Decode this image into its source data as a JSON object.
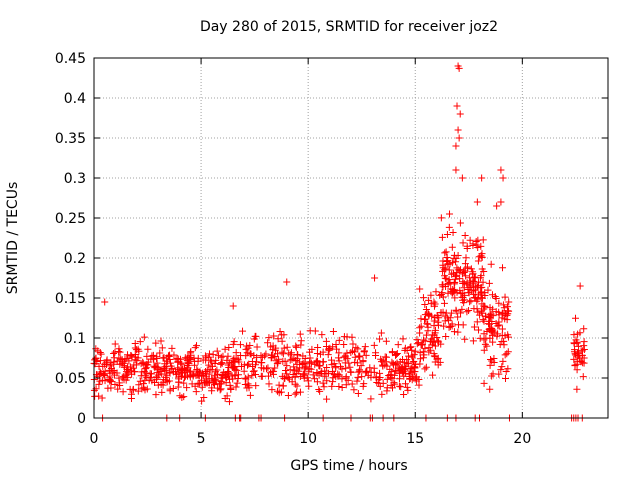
{
  "chart_data": {
    "type": "scatter",
    "title": "Day 280 of 2015, SRMTID for receiver joz2",
    "xlabel": "GPS time / hours",
    "ylabel": "SRMTID / TECUs",
    "xlim": [
      0,
      24
    ],
    "ylim": [
      0,
      0.45
    ],
    "xticks": [
      0,
      5,
      10,
      15,
      20
    ],
    "xtick_labels": [
      "0",
      "5",
      "10",
      "15",
      "20"
    ],
    "yticks": [
      0,
      0.05,
      0.1,
      0.15,
      0.2,
      0.25,
      0.3,
      0.35,
      0.4,
      0.45
    ],
    "ytick_labels": [
      "0",
      "0.05",
      "0.1",
      "0.15",
      "0.2",
      "0.25",
      "0.3",
      "0.35",
      "0.4",
      "0.45"
    ],
    "grid": true,
    "marker": "+",
    "color": "#ff0000",
    "segments": [
      {
        "x_start": 0.0,
        "x_end": 6.7,
        "y_mean": 0.06,
        "y_spread": 0.022,
        "n": 420
      },
      {
        "x_start": 6.7,
        "x_end": 15.2,
        "y_mean": 0.065,
        "y_spread": 0.025,
        "n": 420
      },
      {
        "x_start": 15.2,
        "x_end": 16.2,
        "y_mean": 0.11,
        "y_spread": 0.04,
        "n": 80
      },
      {
        "x_start": 16.2,
        "x_end": 18.2,
        "y_mean": 0.17,
        "y_spread": 0.05,
        "n": 200
      },
      {
        "x_start": 18.2,
        "x_end": 19.4,
        "y_mean": 0.11,
        "y_spread": 0.04,
        "n": 100
      },
      {
        "x_start": 22.4,
        "x_end": 22.9,
        "y_mean": 0.08,
        "y_spread": 0.025,
        "n": 40
      }
    ],
    "peaks": [
      {
        "x": 17.0,
        "y": 0.44
      },
      {
        "x": 17.05,
        "y": 0.437
      },
      {
        "x": 16.95,
        "y": 0.39
      },
      {
        "x": 17.1,
        "y": 0.38
      },
      {
        "x": 17.0,
        "y": 0.36
      },
      {
        "x": 17.05,
        "y": 0.35
      },
      {
        "x": 16.9,
        "y": 0.34
      },
      {
        "x": 16.9,
        "y": 0.31
      },
      {
        "x": 17.2,
        "y": 0.3
      },
      {
        "x": 18.1,
        "y": 0.3
      },
      {
        "x": 19.0,
        "y": 0.31
      },
      {
        "x": 19.1,
        "y": 0.3
      },
      {
        "x": 19.0,
        "y": 0.27
      },
      {
        "x": 17.9,
        "y": 0.27
      },
      {
        "x": 18.8,
        "y": 0.265
      },
      {
        "x": 16.6,
        "y": 0.255
      },
      {
        "x": 6.5,
        "y": 0.14
      },
      {
        "x": 9.0,
        "y": 0.17
      },
      {
        "x": 13.1,
        "y": 0.175
      },
      {
        "x": 0.5,
        "y": 0.145
      },
      {
        "x": 22.7,
        "y": 0.165
      }
    ],
    "zero_markers_x": [
      0.4,
      3.4,
      4.0,
      5.2,
      6.6,
      6.8,
      6.85,
      7.7,
      7.8,
      8.9,
      10.7,
      12.0,
      12.9,
      13.0,
      13.5,
      14.0,
      15.5,
      16.5,
      16.9,
      17.8,
      18.0,
      19.4,
      22.3,
      22.4,
      22.5,
      22.6,
      22.8
    ]
  }
}
